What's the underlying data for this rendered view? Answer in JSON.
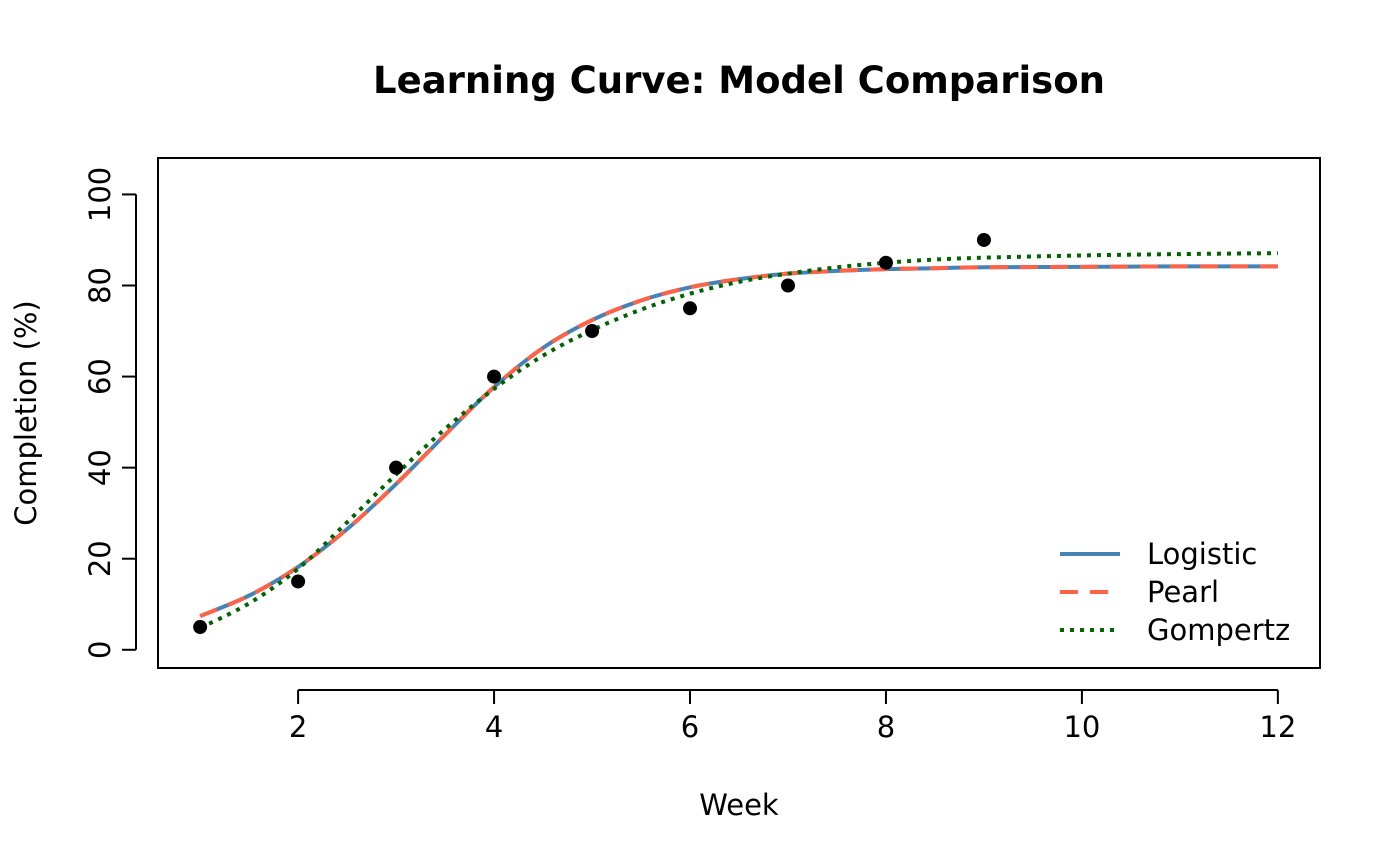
{
  "chart_data": {
    "type": "line",
    "title": "Learning Curve: Model Comparison",
    "xlabel": "Week",
    "ylabel": "Completion (%)",
    "xlim": [
      0.57,
      12.43
    ],
    "ylim": [
      -4,
      108
    ],
    "x_ticks": [
      2,
      4,
      6,
      8,
      10,
      12
    ],
    "y_ticks": [
      0,
      20,
      40,
      60,
      80,
      100
    ],
    "grid": false,
    "legend_position": "bottom-right",
    "observed": {
      "x": [
        1,
        2,
        3,
        4,
        5,
        6,
        7,
        8,
        9
      ],
      "y": [
        5,
        15,
        40,
        60,
        70,
        75,
        80,
        85,
        90
      ],
      "color": "#000000"
    },
    "series": [
      {
        "name": "Logistic",
        "style": "solid",
        "color": "#4682B4",
        "x": [
          1,
          1.5,
          2,
          2.5,
          3,
          3.5,
          4,
          4.5,
          5,
          5.5,
          6,
          6.5,
          7,
          7.5,
          8,
          8.5,
          9,
          10,
          11,
          12
        ],
        "y": [
          7.4,
          11.9,
          18.2,
          26.5,
          36.4,
          47.2,
          57.7,
          66.3,
          72.4,
          76.7,
          79.6,
          81.4,
          82.6,
          83.2,
          83.6,
          83.8,
          84.0,
          84.1,
          84.2,
          84.2
        ]
      },
      {
        "name": "Pearl",
        "style": "dashed",
        "color": "#FF6347",
        "x": [
          1,
          1.5,
          2,
          2.5,
          3,
          3.5,
          4,
          4.5,
          5,
          5.5,
          6,
          6.5,
          7,
          7.5,
          8,
          8.5,
          9,
          10,
          11,
          12
        ],
        "y": [
          7.4,
          11.9,
          18.2,
          26.5,
          36.4,
          47.2,
          57.7,
          66.3,
          72.4,
          76.7,
          79.6,
          81.4,
          82.6,
          83.2,
          83.6,
          83.8,
          84.0,
          84.1,
          84.2,
          84.2
        ]
      },
      {
        "name": "Gompertz",
        "style": "dotted",
        "color": "#006400",
        "x": [
          1,
          1.5,
          2,
          2.5,
          3,
          3.5,
          4,
          4.5,
          5,
          5.5,
          6,
          6.5,
          7,
          7.5,
          8,
          8.5,
          9,
          10,
          11,
          12
        ],
        "y": [
          4.8,
          10.2,
          17.8,
          28.0,
          38.5,
          48.5,
          57.3,
          64.6,
          70.2,
          74.7,
          78.2,
          80.8,
          82.6,
          84.0,
          85.0,
          85.7,
          86.1,
          86.6,
          86.9,
          87.1
        ]
      }
    ]
  }
}
